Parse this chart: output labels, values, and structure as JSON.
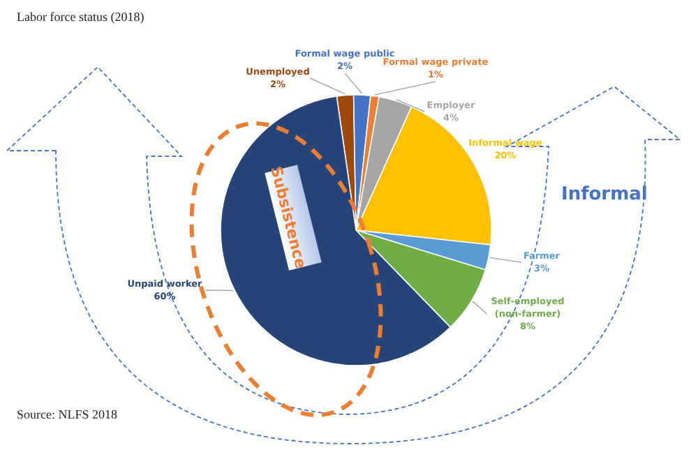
{
  "chart_data": {
    "type": "pie",
    "title": "Labor force status (2018)",
    "categories": [
      "Unemployed",
      "Formal wage public",
      "Formal wage private",
      "Employer",
      "Informal wage",
      "Farmer",
      "Self-employed (non-farmer)",
      "Unpaid worker"
    ],
    "values": [
      2,
      2,
      1,
      4,
      20,
      3,
      8,
      60
    ],
    "colors": [
      "#9e480e",
      "#4472c4",
      "#ed7d31",
      "#a5a5a5",
      "#ffc000",
      "#5b9bd5",
      "#70ad47",
      "#264478"
    ],
    "value_labels": [
      "2%",
      "2%",
      "1%",
      "4%",
      "20%",
      "3%",
      "8%",
      "60%"
    ],
    "annotations": [
      "Informal",
      "Subsistence",
      "Source: NLFS 2018"
    ]
  }
}
